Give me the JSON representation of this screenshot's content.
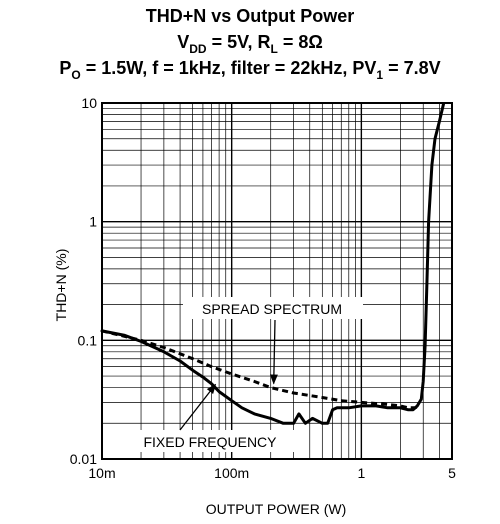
{
  "chart_data": {
    "type": "line",
    "title": "THD+N vs Output Power",
    "subtitle_1": {
      "v_label": "V",
      "v_sub": "DD",
      "v_val": " = 5V, R",
      "r_sub": "L",
      "r_val": " = 8Ω"
    },
    "subtitle_2": {
      "p_label": "P",
      "p_sub": "O",
      "p_val": " = 1.5W, f = 1kHz, filter = 22kHz, PV",
      "pv_sub": "1",
      "pv_val": " = 7.8V"
    },
    "xlabel": "OUTPUT POWER (W)",
    "ylabel": "THD+N (%)",
    "x_scale": "log",
    "y_scale": "log",
    "xlim": [
      0.01,
      5
    ],
    "ylim": [
      0.01,
      10
    ],
    "x_ticks": [
      {
        "value": 0.01,
        "label": "10m"
      },
      {
        "value": 0.1,
        "label": "100m"
      },
      {
        "value": 1,
        "label": "1"
      },
      {
        "value": 5,
        "label": "5"
      }
    ],
    "y_ticks": [
      {
        "value": 0.01,
        "label": "0.01"
      },
      {
        "value": 0.1,
        "label": "0.1"
      },
      {
        "value": 1,
        "label": "1"
      },
      {
        "value": 10,
        "label": "10"
      }
    ],
    "grid": true,
    "series": [
      {
        "name": "FIXED FREQUENCY",
        "style": "solid",
        "color": "#000000",
        "x": [
          0.01,
          0.015,
          0.02,
          0.03,
          0.04,
          0.05,
          0.06,
          0.07,
          0.08,
          0.1,
          0.12,
          0.15,
          0.2,
          0.25,
          0.3,
          0.33,
          0.37,
          0.42,
          0.5,
          0.55,
          0.6,
          0.65,
          0.8,
          1.0,
          1.3,
          1.6,
          2.0,
          2.3,
          2.5,
          2.7,
          2.9,
          3.0,
          3.1,
          3.2,
          3.3,
          3.5,
          3.7,
          4.0,
          4.3
        ],
        "y": [
          0.12,
          0.11,
          0.098,
          0.08,
          0.067,
          0.056,
          0.049,
          0.043,
          0.037,
          0.031,
          0.027,
          0.024,
          0.022,
          0.02,
          0.02,
          0.024,
          0.02,
          0.022,
          0.02,
          0.02,
          0.026,
          0.027,
          0.027,
          0.028,
          0.028,
          0.027,
          0.027,
          0.026,
          0.026,
          0.028,
          0.032,
          0.045,
          0.09,
          0.3,
          1.0,
          3.0,
          5.0,
          7.0,
          9.8
        ]
      },
      {
        "name": "SPREAD SPECTRUM",
        "style": "dashed",
        "color": "#000000",
        "x": [
          0.01,
          0.02,
          0.03,
          0.05,
          0.07,
          0.1,
          0.15,
          0.2,
          0.3,
          0.5,
          0.7,
          1.0,
          1.5,
          2.0,
          2.3,
          2.6,
          2.8
        ],
        "y": [
          0.12,
          0.1,
          0.087,
          0.07,
          0.06,
          0.052,
          0.045,
          0.04,
          0.036,
          0.033,
          0.031,
          0.03,
          0.029,
          0.028,
          0.027,
          0.027,
          0.028
        ]
      }
    ],
    "annotations": [
      {
        "text": "SPREAD SPECTRUM",
        "arrow_to": {
          "x": 0.2,
          "y": 0.04
        }
      },
      {
        "text": "FIXED FREQUENCY",
        "arrow_to": {
          "x": 0.075,
          "y": 0.045
        }
      }
    ]
  }
}
